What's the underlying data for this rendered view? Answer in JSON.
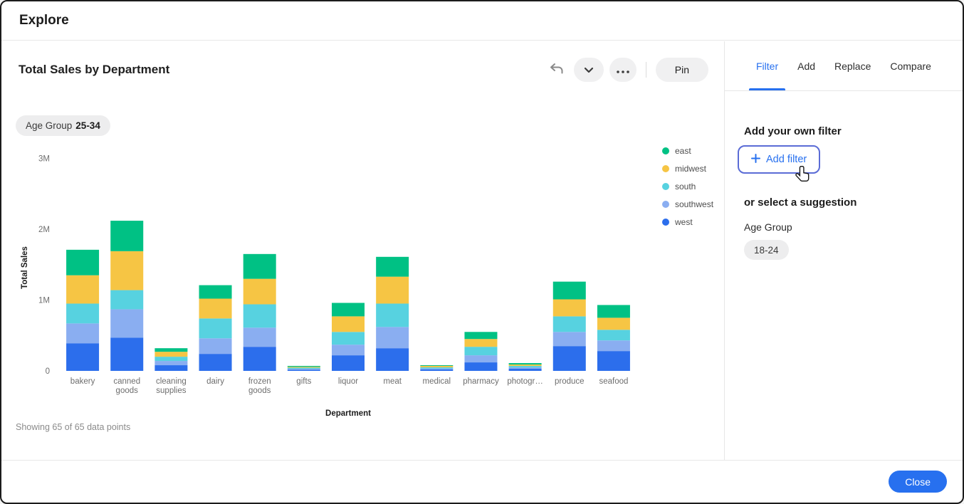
{
  "window": {
    "title": "Explore"
  },
  "viz": {
    "title": "Total Sales by Department",
    "toolbar": {
      "pin_label": "Pin"
    },
    "filter_chip": {
      "label": "Age Group",
      "value": "25-34"
    },
    "footer_note": "Showing 65 of 65 data points"
  },
  "panel": {
    "tabs": [
      {
        "label": "Filter",
        "active": true
      },
      {
        "label": "Add",
        "active": false
      },
      {
        "label": "Replace",
        "active": false
      },
      {
        "label": "Compare",
        "active": false
      }
    ],
    "own_filter_heading": "Add your own filter",
    "add_filter_button_label": "Add filter",
    "suggestion_heading": "or select a suggestion",
    "suggestion_group_label": "Age Group",
    "suggestion_chip_label": "18-24"
  },
  "footer": {
    "close_label": "Close"
  },
  "colors": {
    "accent_blue": "#2770EF",
    "add_filter_border": "#5B6CD6",
    "chip_bg": "#EDEDEE",
    "toolbar_button_bg": "#F0F0F1"
  },
  "chart_data": {
    "type": "bar",
    "stacked": true,
    "title": "Total Sales by Department",
    "xlabel": "Department",
    "ylabel": "Total Sales",
    "ylim": [
      0,
      3000000
    ],
    "grid": false,
    "legend_position": "right",
    "yticks": [
      {
        "value": 0,
        "label": "0"
      },
      {
        "value": 1000000,
        "label": "1M"
      },
      {
        "value": 2000000,
        "label": "2M"
      },
      {
        "value": 3000000,
        "label": "3M"
      }
    ],
    "categories": [
      {
        "name": "bakery",
        "lines": [
          "bakery"
        ]
      },
      {
        "name": "canned goods",
        "lines": [
          "canned",
          "goods"
        ]
      },
      {
        "name": "cleaning supplies",
        "lines": [
          "cleaning",
          "supplies"
        ]
      },
      {
        "name": "dairy",
        "lines": [
          "dairy"
        ]
      },
      {
        "name": "frozen goods",
        "lines": [
          "frozen",
          "goods"
        ]
      },
      {
        "name": "gifts",
        "lines": [
          "gifts"
        ]
      },
      {
        "name": "liquor",
        "lines": [
          "liquor"
        ]
      },
      {
        "name": "meat",
        "lines": [
          "meat"
        ]
      },
      {
        "name": "medical",
        "lines": [
          "medical"
        ]
      },
      {
        "name": "pharmacy",
        "lines": [
          "pharmacy"
        ]
      },
      {
        "name": "photogr…",
        "lines": [
          "photogr…"
        ]
      },
      {
        "name": "produce",
        "lines": [
          "produce"
        ]
      },
      {
        "name": "seafood",
        "lines": [
          "seafood"
        ]
      }
    ],
    "series_stack_order": "bottom-to-top",
    "series": [
      {
        "name": "west",
        "color": "#2C6EEC",
        "values": [
          390000,
          470000,
          80000,
          240000,
          340000,
          15000,
          220000,
          320000,
          20000,
          120000,
          30000,
          350000,
          280000
        ]
      },
      {
        "name": "southwest",
        "color": "#8AAEF1",
        "values": [
          280000,
          400000,
          60000,
          220000,
          270000,
          15000,
          150000,
          300000,
          15000,
          100000,
          20000,
          200000,
          150000
        ]
      },
      {
        "name": "south",
        "color": "#57D2E0",
        "values": [
          280000,
          270000,
          60000,
          280000,
          330000,
          15000,
          180000,
          330000,
          15000,
          120000,
          20000,
          220000,
          150000
        ]
      },
      {
        "name": "midwest",
        "color": "#F6C544",
        "values": [
          400000,
          550000,
          70000,
          280000,
          360000,
          12000,
          220000,
          380000,
          20000,
          110000,
          20000,
          240000,
          170000
        ]
      },
      {
        "name": "east",
        "color": "#00C184",
        "values": [
          360000,
          430000,
          50000,
          190000,
          350000,
          13000,
          190000,
          280000,
          10000,
          100000,
          20000,
          250000,
          180000
        ]
      }
    ]
  }
}
